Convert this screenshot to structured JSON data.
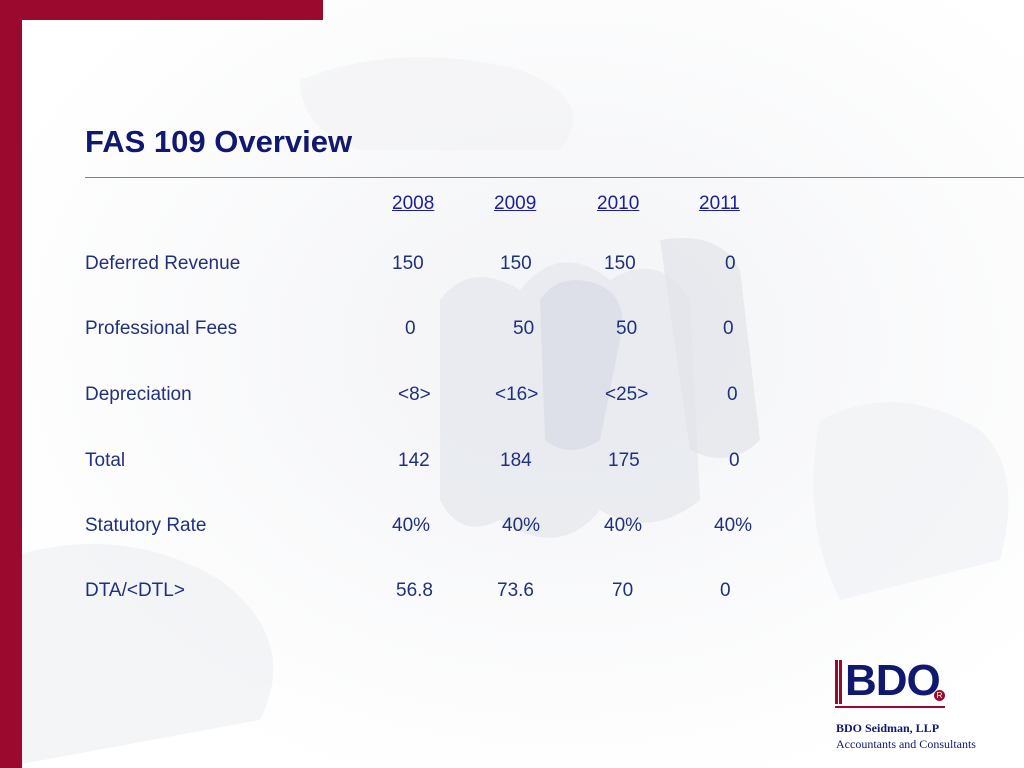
{
  "slide": {
    "title": "FAS 109 Overview",
    "accent_color": "#9b0a2e",
    "title_color": "#101870"
  },
  "table": {
    "years": [
      "2008",
      "2009",
      "2010",
      "2011"
    ],
    "rows": [
      {
        "label": "Deferred Revenue",
        "values": [
          "150",
          "150",
          "150",
          "0"
        ]
      },
      {
        "label": "Professional Fees",
        "values": [
          "0",
          "50",
          "50",
          "0"
        ]
      },
      {
        "label": "Depreciation",
        "values": [
          "<8>",
          "<16>",
          "<25>",
          "0"
        ]
      },
      {
        "label": "Total",
        "values": [
          "142",
          "184",
          "175",
          "0"
        ]
      },
      {
        "label": "Statutory Rate",
        "values": [
          "40%",
          "40%",
          "40%",
          "40%"
        ]
      },
      {
        "label": "DTA/<DTL>",
        "values": [
          "56.8",
          "73.6",
          "70",
          "0"
        ]
      }
    ]
  },
  "footer": {
    "logo_text": "BDO",
    "registered_mark": "R",
    "company": "BDO Seidman, LLP",
    "tagline": "Accountants and Consultants"
  }
}
